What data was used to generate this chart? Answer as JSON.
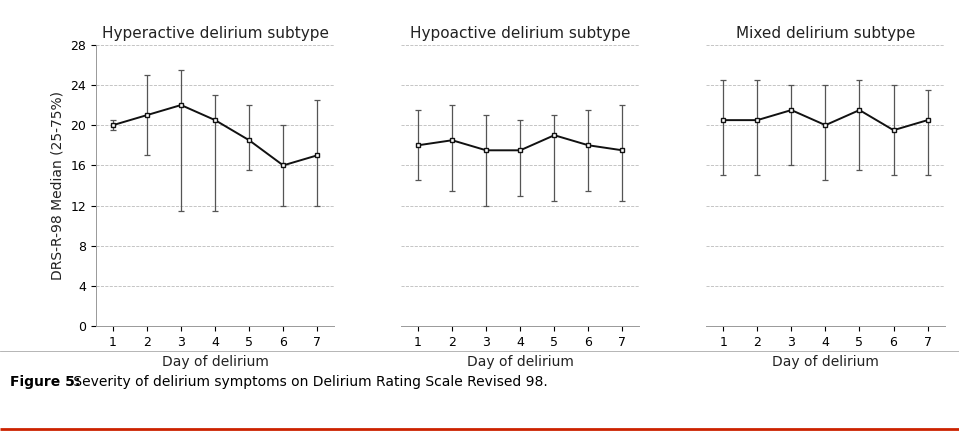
{
  "subtypes": [
    "Hyperactive delirium subtype",
    "Hypoactive delirium subtype",
    "Mixed delirium subtype"
  ],
  "days": [
    1,
    2,
    3,
    4,
    5,
    6,
    7
  ],
  "medians": [
    [
      20.0,
      21.0,
      22.0,
      20.5,
      18.5,
      16.0,
      17.0
    ],
    [
      18.0,
      18.5,
      17.5,
      17.5,
      19.0,
      18.0,
      17.5
    ],
    [
      20.5,
      20.5,
      21.5,
      20.0,
      21.5,
      19.5,
      20.5
    ]
  ],
  "err_low": [
    [
      0.5,
      4.0,
      10.5,
      9.0,
      3.0,
      4.0,
      5.0
    ],
    [
      3.5,
      5.0,
      5.5,
      4.5,
      6.5,
      4.5,
      5.0
    ],
    [
      5.5,
      5.5,
      5.5,
      5.5,
      6.0,
      4.5,
      5.5
    ]
  ],
  "err_high": [
    [
      0.5,
      4.0,
      3.5,
      2.5,
      3.5,
      4.0,
      5.5
    ],
    [
      3.5,
      3.5,
      3.5,
      3.0,
      2.0,
      3.5,
      4.5
    ],
    [
      4.0,
      4.0,
      2.5,
      4.0,
      3.0,
      4.5,
      3.0
    ]
  ],
  "ylim": [
    0,
    28
  ],
  "yticks": [
    0,
    4,
    8,
    12,
    16,
    20,
    24,
    28
  ],
  "xlabel": "Day of delirium",
  "ylabel": "DRS-R-98 Median (25-75%)",
  "line_color": "#111111",
  "marker": "s",
  "marker_size": 3.5,
  "errorbar_color": "#555555",
  "grid_color": "#bbbbbb",
  "background_color": "#ffffff",
  "caption_bold": "Figure 5:",
  "caption_normal": " Severity of delirium symptoms on Delirium Rating Scale Revised 98.",
  "title_fontsize": 11,
  "label_fontsize": 10,
  "tick_fontsize": 9,
  "caption_fontsize": 10
}
